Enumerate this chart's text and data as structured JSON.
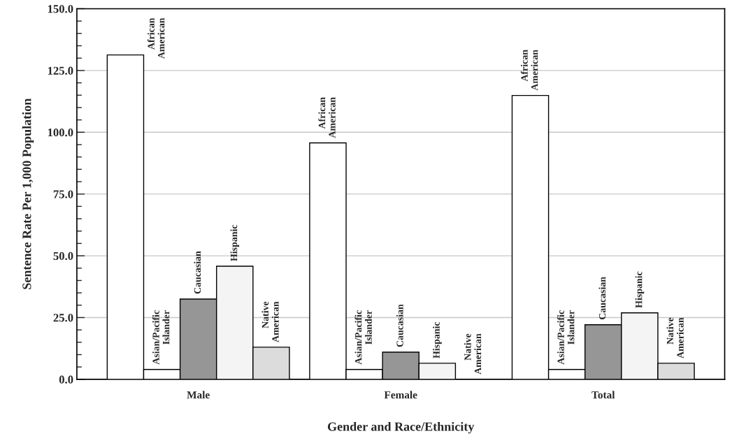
{
  "chart_data": {
    "type": "bar",
    "xlabel": "Gender and Race/Ethnicity",
    "ylabel": "Sentence Rate Per 1,000 Population",
    "categories": [
      "Male",
      "Female",
      "Total"
    ],
    "series": [
      {
        "name": "African American",
        "color": "#ffffff",
        "values": [
          131.3,
          95.7,
          114.9
        ]
      },
      {
        "name": "Asian/Pacific Islander",
        "color": "#ffffff",
        "values": [
          4.0,
          4.0,
          4.0
        ]
      },
      {
        "name": "Caucasian",
        "color": "#969696",
        "values": [
          32.5,
          11.0,
          22.1
        ]
      },
      {
        "name": "Hispanic",
        "color": "#f4f4f4",
        "values": [
          45.8,
          6.5,
          26.9
        ]
      },
      {
        "name": "Native American",
        "color": "#dcdcdc",
        "values": [
          13.0,
          0.0,
          6.5
        ]
      }
    ],
    "ylim": [
      0,
      150
    ],
    "yticks": [
      {
        "value": 0,
        "label": "0.0"
      },
      {
        "value": 5,
        "label": null
      },
      {
        "value": 10,
        "label": null
      },
      {
        "value": 15,
        "label": null
      },
      {
        "value": 20,
        "label": null
      },
      {
        "value": 25,
        "label": "25.0"
      },
      {
        "value": 30,
        "label": null
      },
      {
        "value": 35,
        "label": null
      },
      {
        "value": 40,
        "label": null
      },
      {
        "value": 45,
        "label": null
      },
      {
        "value": 50,
        "label": "50.0"
      },
      {
        "value": 55,
        "label": null
      },
      {
        "value": 60,
        "label": null
      },
      {
        "value": 65,
        "label": null
      },
      {
        "value": 70,
        "label": null
      },
      {
        "value": 75,
        "label": "75.0"
      },
      {
        "value": 80,
        "label": null
      },
      {
        "value": 85,
        "label": null
      },
      {
        "value": 90,
        "label": null
      },
      {
        "value": 95,
        "label": null
      },
      {
        "value": 100,
        "label": "100.0"
      },
      {
        "value": 105,
        "label": null
      },
      {
        "value": 110,
        "label": null
      },
      {
        "value": 115,
        "label": null
      },
      {
        "value": 120,
        "label": null
      },
      {
        "value": 125,
        "label": "125.0"
      },
      {
        "value": 130,
        "label": null
      },
      {
        "value": 135,
        "label": null
      },
      {
        "value": 140,
        "label": null
      },
      {
        "value": 145,
        "label": null
      },
      {
        "value": 150,
        "label": "150.0"
      }
    ],
    "grid": "y",
    "legend": false
  }
}
